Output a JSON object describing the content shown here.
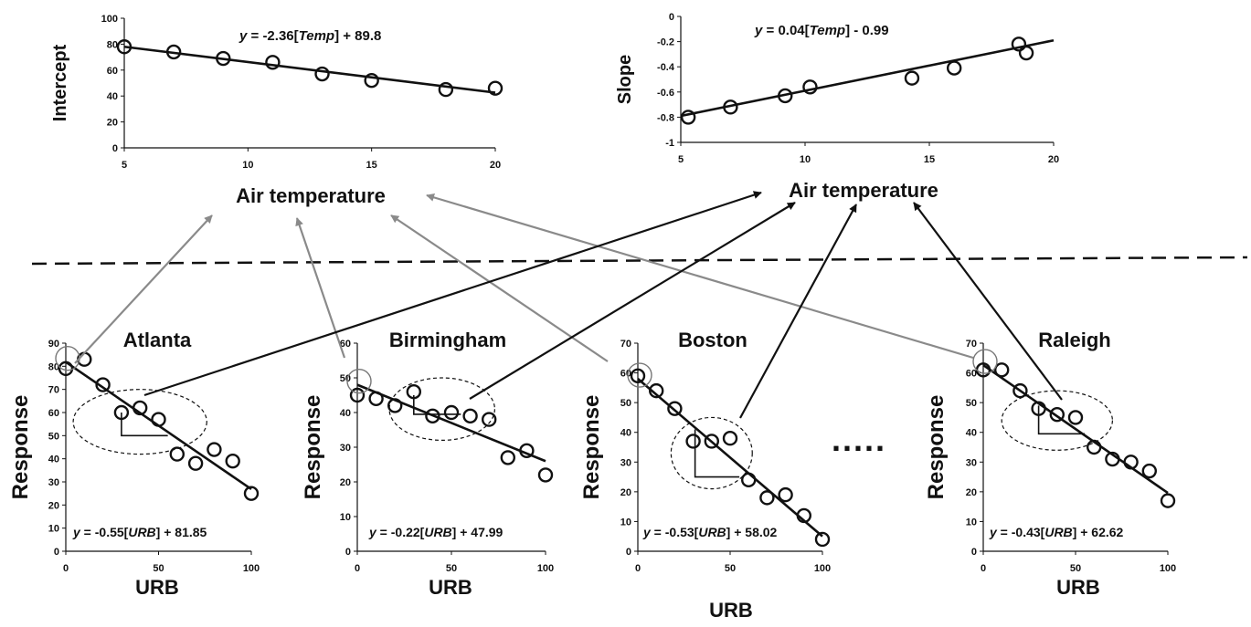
{
  "colors": {
    "black": "#111111",
    "gray": "#8a8a8a",
    "circle_gray": "#777777"
  },
  "chart_data": [
    {
      "id": "intercept",
      "type": "scatter",
      "xlabel": "Air temperature",
      "ylabel": "Intercept",
      "xlim": [
        5,
        20
      ],
      "ylim": [
        0,
        100
      ],
      "xticks": [
        5,
        10,
        15,
        20
      ],
      "yticks": [
        0,
        20,
        40,
        60,
        80,
        100
      ],
      "x": [
        5,
        7,
        9,
        11,
        13,
        15,
        18,
        20
      ],
      "y": [
        78,
        74,
        69,
        66,
        57,
        52,
        45,
        46
      ],
      "fit": {
        "slope": -2.36,
        "intercept": 89.8
      },
      "equation": {
        "y": "y",
        "mid": " = -2.36[",
        "var": "Temp",
        "end": "] + 89.8"
      }
    },
    {
      "id": "slope",
      "type": "scatter",
      "xlabel": "Air temperature",
      "ylabel": "Slope",
      "xlim": [
        5,
        20
      ],
      "ylim": [
        -1,
        0
      ],
      "xticks": [
        5,
        10,
        15,
        20
      ],
      "yticks": [
        -1,
        -0.8,
        -0.6,
        -0.4,
        -0.2,
        0
      ],
      "x": [
        5.3,
        7.0,
        9.2,
        10.2,
        14.3,
        16.0,
        18.6,
        18.9
      ],
      "y": [
        -0.8,
        -0.72,
        -0.63,
        -0.56,
        -0.49,
        -0.41,
        -0.22,
        -0.29
      ],
      "fit": {
        "slope": 0.04,
        "intercept": -0.99
      },
      "equation": {
        "y": "y",
        "mid": " = 0.04[",
        "var": "Temp",
        "end": "] - 0.99"
      }
    },
    {
      "id": "atlanta",
      "type": "scatter",
      "title": "Atlanta",
      "xlabel": "URB",
      "ylabel": "Response",
      "xlim": [
        0,
        100
      ],
      "ylim": [
        0,
        90
      ],
      "xticks": [
        0,
        50,
        100
      ],
      "yticks": [
        0,
        10,
        20,
        30,
        40,
        50,
        60,
        70,
        80,
        90
      ],
      "x": [
        0,
        10,
        20,
        30,
        40,
        50,
        60,
        70,
        80,
        90,
        100
      ],
      "y": [
        79,
        83,
        72,
        60,
        62,
        57,
        42,
        38,
        44,
        39,
        25
      ],
      "fit": {
        "slope": -0.55,
        "intercept": 81.85
      },
      "equation": {
        "y": "y",
        "mid": " = -0.55[",
        "var": "URB",
        "end": "] + 81.85"
      }
    },
    {
      "id": "birmingham",
      "type": "scatter",
      "title": "Birmingham",
      "xlabel": "URB",
      "ylabel": "Response",
      "xlim": [
        0,
        100
      ],
      "ylim": [
        0,
        60
      ],
      "xticks": [
        0,
        50,
        100
      ],
      "yticks": [
        0,
        10,
        20,
        30,
        40,
        50,
        60
      ],
      "x": [
        0,
        10,
        20,
        30,
        40,
        50,
        60,
        70,
        80,
        90,
        100
      ],
      "y": [
        45,
        44,
        42,
        46,
        39,
        40,
        39,
        38,
        27,
        29,
        22
      ],
      "fit": {
        "slope": -0.22,
        "intercept": 47.99
      },
      "equation": {
        "y": "y",
        "mid": " = -0.22[",
        "var": "URB",
        "end": "] + 47.99"
      }
    },
    {
      "id": "boston",
      "type": "scatter",
      "title": "Boston",
      "xlabel": "URB",
      "ylabel": "Response",
      "xlim": [
        0,
        100
      ],
      "ylim": [
        0,
        70
      ],
      "xticks": [
        0,
        50,
        100
      ],
      "yticks": [
        0,
        10,
        20,
        30,
        40,
        50,
        60,
        70
      ],
      "x": [
        0,
        10,
        20,
        30,
        40,
        50,
        60,
        70,
        80,
        90,
        100
      ],
      "y": [
        59,
        54,
        48,
        37,
        37,
        38,
        24,
        18,
        19,
        12,
        4
      ],
      "fit": {
        "slope": -0.53,
        "intercept": 58.02
      },
      "equation": {
        "y": "y",
        "mid": " = -0.53[",
        "var": "URB",
        "end": "] + 58.02"
      }
    },
    {
      "id": "raleigh",
      "type": "scatter",
      "title": "Raleigh",
      "xlabel": "URB",
      "ylabel": "Response",
      "xlim": [
        0,
        100
      ],
      "ylim": [
        0,
        70
      ],
      "xticks": [
        0,
        50,
        100
      ],
      "yticks": [
        0,
        10,
        20,
        30,
        40,
        50,
        60,
        70
      ],
      "x": [
        0,
        10,
        20,
        30,
        40,
        50,
        60,
        70,
        80,
        90,
        100
      ],
      "y": [
        61,
        61,
        54,
        48,
        46,
        45,
        35,
        31,
        30,
        27,
        17
      ],
      "fit": {
        "slope": -0.43,
        "intercept": 62.62
      },
      "equation": {
        "y": "y",
        "mid": " = -0.43[",
        "var": "URB",
        "end": "] + 62.62"
      }
    }
  ],
  "ellipsis": "....."
}
